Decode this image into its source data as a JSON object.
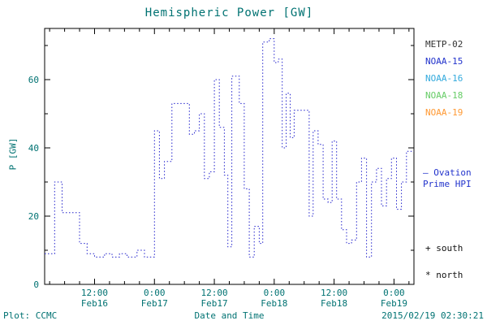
{
  "colors": {
    "axis_text": "#007272",
    "axis_line": "#000000",
    "accent_blue": "#2233cc"
  },
  "chart_data": {
    "type": "line",
    "title": "Hemispheric Power [GW]",
    "xlabel": "Date and Time",
    "ylabel": "P [GW]",
    "line": {
      "color": "#2222cc",
      "style": "dotted",
      "step": true
    },
    "xlim_hours": [
      2,
      76
    ],
    "ylim": [
      0,
      75
    ],
    "yticks_major": [
      0,
      20,
      40,
      60
    ],
    "yticks_minor": [
      10,
      30,
      50,
      70
    ],
    "x_minor_step_hours": 3,
    "xticks": [
      {
        "hour": 12,
        "time": "12:00",
        "date": "Feb16"
      },
      {
        "hour": 24,
        "time": "0:00",
        "date": "Feb17"
      },
      {
        "hour": 36,
        "time": "12:00",
        "date": "Feb17"
      },
      {
        "hour": 48,
        "time": "0:00",
        "date": "Feb18"
      },
      {
        "hour": 60,
        "time": "12:00",
        "date": "Feb18"
      },
      {
        "hour": 72,
        "time": "0:00",
        "date": "Feb19"
      }
    ],
    "series": [
      {
        "name": "Ovation Prime Hemispheric Power Index",
        "x_hours": [
          2,
          4,
          5.5,
          9,
          10.5,
          12,
          14,
          15.5,
          17,
          18.5,
          20.5,
          22,
          24,
          25,
          26,
          27.5,
          29.5,
          31,
          32,
          33,
          34,
          35,
          36,
          37,
          38,
          38.7,
          39.5,
          41,
          42,
          43,
          44,
          45,
          45.7,
          47,
          48,
          48.8,
          49.6,
          50.4,
          51.2,
          52,
          53.5,
          55,
          55.8,
          56.8,
          57.8,
          58.8,
          59.6,
          60.5,
          61.5,
          62.5,
          63.5,
          64.5,
          65.5,
          66.5,
          67.5,
          68.5,
          69.5,
          70.5,
          71.5,
          72.5,
          73.5,
          74.5
        ],
        "values": [
          9,
          30,
          21,
          12,
          9,
          8,
          9,
          8,
          9,
          8,
          10,
          8,
          45,
          31,
          36,
          53,
          53,
          44,
          45,
          50,
          31,
          33,
          60,
          46,
          32,
          11,
          61,
          53,
          28,
          8,
          17,
          12,
          71,
          72,
          65,
          66,
          40,
          56,
          43,
          51,
          51,
          20,
          45,
          41,
          25,
          24,
          42,
          25,
          16,
          12,
          13,
          30,
          37,
          8,
          30,
          34,
          23,
          31,
          37,
          22,
          30,
          39
        ]
      }
    ]
  },
  "legend": {
    "items": [
      {
        "label": "METP-02",
        "color": "#333333"
      },
      {
        "label": "NOAA-15",
        "color": "#2233cc"
      },
      {
        "label": "NOAA-16",
        "color": "#33aadd"
      },
      {
        "label": "NOAA-18",
        "color": "#66cc66"
      },
      {
        "label": "NOAA-19",
        "color": "#ff9933"
      }
    ]
  },
  "annotations": {
    "ovation_note": "— Ovation\nPrime HPI",
    "south_marker": "+ south",
    "north_marker": "* north"
  },
  "footer": {
    "credit": "Plot: CCMC",
    "timestamp": "2015/02/19 02:30:21"
  }
}
